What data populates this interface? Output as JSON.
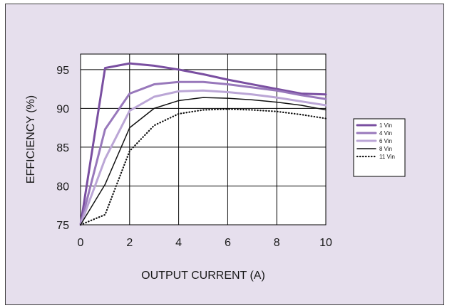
{
  "chart_data": {
    "type": "line",
    "xlabel": "OUTPUT CURRENT (A)",
    "ylabel": "EFFICIENCY (%)",
    "xlim": [
      0,
      10
    ],
    "ylim": [
      75,
      97
    ],
    "x_ticks": [
      "0",
      "2",
      "4",
      "6",
      "8",
      "10"
    ],
    "y_ticks": [
      "75",
      "80",
      "85",
      "90",
      "95"
    ],
    "grid": true,
    "legend_position": "right",
    "x": [
      0,
      1,
      2,
      3,
      4,
      5,
      6,
      7,
      8,
      9,
      10
    ],
    "series": [
      {
        "name": "1 Vin",
        "color": "#7a4fa1",
        "style": "solid",
        "width": 3,
        "values": [
          75.0,
          95.2,
          95.8,
          95.5,
          95.0,
          94.4,
          93.7,
          93.1,
          92.5,
          91.9,
          91.8
        ]
      },
      {
        "name": "4 Vin",
        "color": "#9878bb",
        "style": "solid",
        "width": 3,
        "values": [
          75.0,
          87.3,
          91.9,
          93.1,
          93.4,
          93.4,
          93.1,
          92.7,
          92.3,
          91.7,
          91.2
        ]
      },
      {
        "name": "6 Vin",
        "color": "#bba6d6",
        "style": "solid",
        "width": 3,
        "values": [
          75.0,
          83.5,
          89.7,
          91.5,
          92.2,
          92.3,
          92.1,
          91.8,
          91.4,
          90.9,
          90.4
        ]
      },
      {
        "name": "8 Vin",
        "color": "#111111",
        "style": "solid",
        "width": 1.5,
        "values": [
          75.0,
          80.2,
          87.5,
          90.0,
          91.0,
          91.4,
          91.3,
          91.1,
          90.8,
          90.4,
          89.8
        ]
      },
      {
        "name": "11 Vin",
        "color": "#111111",
        "style": "dotted",
        "width": 2.2,
        "values": [
          75.0,
          76.3,
          84.5,
          87.8,
          89.3,
          89.8,
          89.9,
          89.8,
          89.6,
          89.2,
          88.7
        ]
      }
    ]
  }
}
